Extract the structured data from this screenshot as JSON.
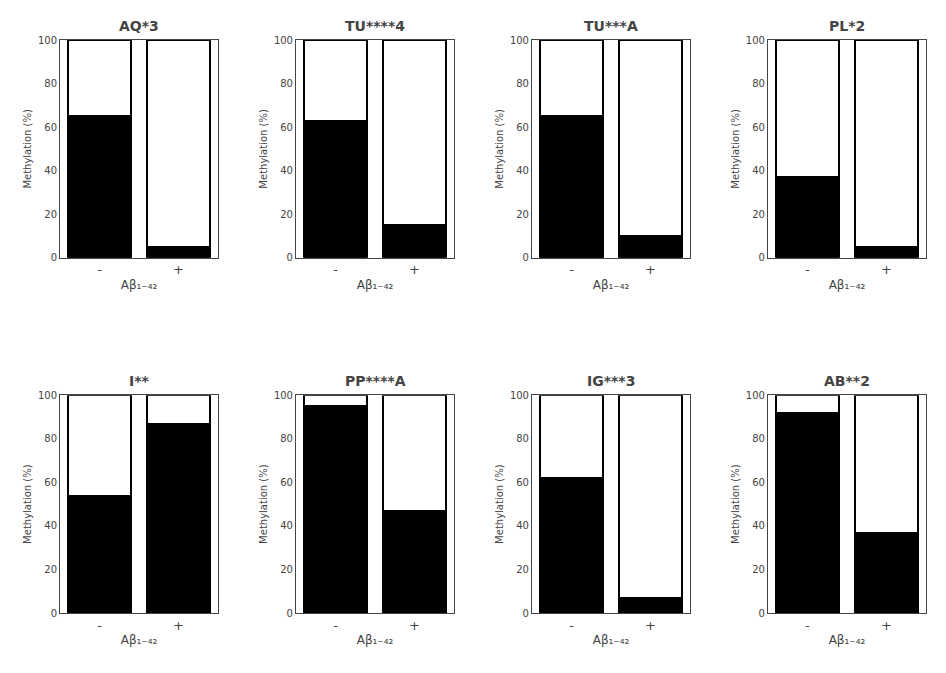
{
  "chart_data": [
    {
      "type": "bar",
      "stacked": true,
      "title": "AQ*3",
      "xlabel": "Aβ₁₋₄₂",
      "ylabel": "Methylation (%)",
      "categories": [
        "-",
        "+"
      ],
      "series": [
        {
          "color": "#000000",
          "values": [
            65,
            5
          ]
        },
        {
          "color": "#ffffff",
          "values": [
            35,
            95
          ]
        }
      ],
      "ylim": [
        0,
        100
      ],
      "yticks": [
        0,
        20,
        40,
        60,
        80,
        100
      ],
      "grid": false
    },
    {
      "type": "bar",
      "stacked": true,
      "title": "TU****4",
      "xlabel": "Aβ₁₋₄₂",
      "ylabel": "Methylation (%)",
      "categories": [
        "-",
        "+"
      ],
      "series": [
        {
          "color": "#000000",
          "values": [
            63,
            15
          ]
        },
        {
          "color": "#ffffff",
          "values": [
            37,
            85
          ]
        }
      ],
      "ylim": [
        0,
        100
      ],
      "yticks": [
        0,
        20,
        40,
        60,
        80,
        100
      ],
      "grid": false
    },
    {
      "type": "bar",
      "stacked": true,
      "title": "TU***A",
      "xlabel": "Aβ₁₋₄₂",
      "ylabel": "Methylation (%)",
      "categories": [
        "-",
        "+"
      ],
      "series": [
        {
          "color": "#000000",
          "values": [
            65,
            10
          ]
        },
        {
          "color": "#ffffff",
          "values": [
            35,
            90
          ]
        }
      ],
      "ylim": [
        0,
        100
      ],
      "yticks": [
        0,
        20,
        40,
        60,
        80,
        100
      ],
      "grid": false
    },
    {
      "type": "bar",
      "stacked": true,
      "title": "PL*2",
      "xlabel": "Aβ₁₋₄₂",
      "ylabel": "Methylation (%)",
      "categories": [
        "-",
        "+"
      ],
      "series": [
        {
          "color": "#000000",
          "values": [
            37,
            5
          ]
        },
        {
          "color": "#ffffff",
          "values": [
            63,
            95
          ]
        }
      ],
      "ylim": [
        0,
        100
      ],
      "yticks": [
        0,
        20,
        40,
        60,
        80,
        100
      ],
      "grid": false
    },
    {
      "type": "bar",
      "stacked": true,
      "title": "I**",
      "xlabel": "Aβ₁₋₄₂",
      "ylabel": "Methylation (%)",
      "categories": [
        "-",
        "+"
      ],
      "series": [
        {
          "color": "#000000",
          "values": [
            54,
            87
          ]
        },
        {
          "color": "#ffffff",
          "values": [
            46,
            13
          ]
        }
      ],
      "ylim": [
        0,
        100
      ],
      "yticks": [
        0,
        20,
        40,
        60,
        80,
        100
      ],
      "grid": false
    },
    {
      "type": "bar",
      "stacked": true,
      "title": "PP****A",
      "xlabel": "Aβ₁₋₄₂",
      "ylabel": "Methylation (%)",
      "categories": [
        "-",
        "+"
      ],
      "series": [
        {
          "color": "#000000",
          "values": [
            95,
            47
          ]
        },
        {
          "color": "#ffffff",
          "values": [
            5,
            53
          ]
        }
      ],
      "ylim": [
        0,
        100
      ],
      "yticks": [
        0,
        20,
        40,
        60,
        80,
        100
      ],
      "grid": false
    },
    {
      "type": "bar",
      "stacked": true,
      "title": "IG***3",
      "xlabel": "Aβ₁₋₄₂",
      "ylabel": "Methylation (%)",
      "categories": [
        "-",
        "+"
      ],
      "series": [
        {
          "color": "#000000",
          "values": [
            62,
            7
          ]
        },
        {
          "color": "#ffffff",
          "values": [
            38,
            93
          ]
        }
      ],
      "ylim": [
        0,
        100
      ],
      "yticks": [
        0,
        20,
        40,
        60,
        80,
        100
      ],
      "grid": false
    },
    {
      "type": "bar",
      "stacked": true,
      "title": "AB**2",
      "xlabel": "Aβ₁₋₄₂",
      "ylabel": "Methylation (%)",
      "categories": [
        "-",
        "+"
      ],
      "series": [
        {
          "color": "#000000",
          "values": [
            92,
            37
          ]
        },
        {
          "color": "#ffffff",
          "values": [
            8,
            63
          ]
        }
      ],
      "ylim": [
        0,
        100
      ],
      "yticks": [
        0,
        20,
        40,
        60,
        80,
        100
      ],
      "grid": false
    }
  ]
}
